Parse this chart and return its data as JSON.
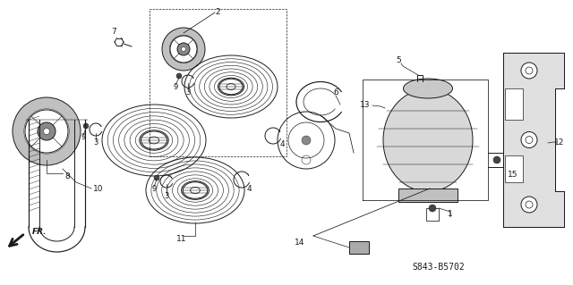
{
  "part_code": "S843-B5702",
  "bg_color": "#ffffff",
  "line_color": "#1a1a1a",
  "fig_width": 6.4,
  "fig_height": 3.19
}
